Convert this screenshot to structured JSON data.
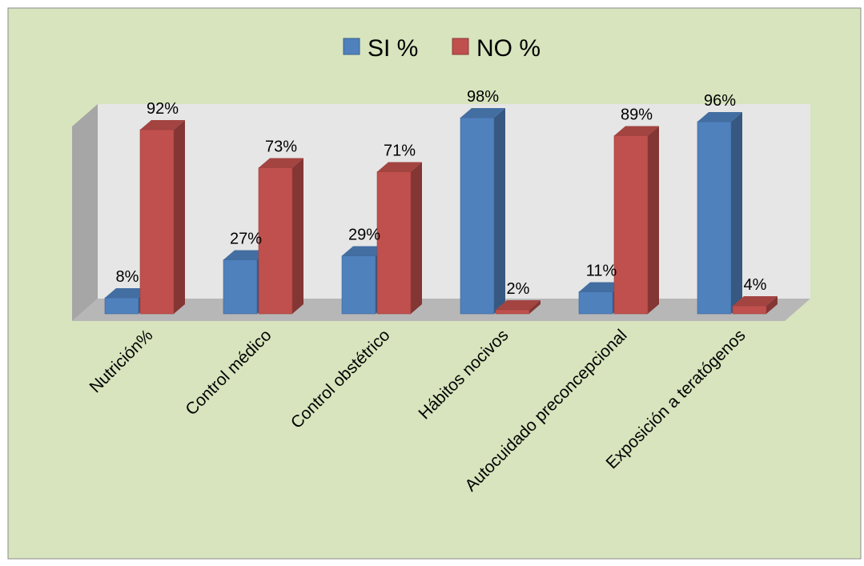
{
  "chart_data": {
    "type": "bar",
    "categories": [
      "Nutrición%",
      "Control médico",
      "Control obstétrico",
      "Hábitos nocivos",
      "Autocuidado preconcepcional",
      "Exposición a teratógenos"
    ],
    "series": [
      {
        "name": "SI %",
        "values": [
          8,
          27,
          29,
          98,
          11,
          96
        ],
        "labels": [
          "8%",
          "27%",
          "29%",
          "98%",
          "11%",
          "96%"
        ],
        "color": "#4F81BD"
      },
      {
        "name": "NO %",
        "values": [
          92,
          73,
          71,
          2,
          89,
          4
        ],
        "labels": [
          "92%",
          "73%",
          "71%",
          "2%",
          "89%",
          "4%"
        ],
        "color": "#C0504D"
      }
    ],
    "ylim": [
      0,
      100
    ],
    "legend": "top-center",
    "three_d": true,
    "background_color": "#D7E4BD",
    "wall_color": "#E6E6E6",
    "floor_color": "#A6A6A6",
    "grid": false
  }
}
